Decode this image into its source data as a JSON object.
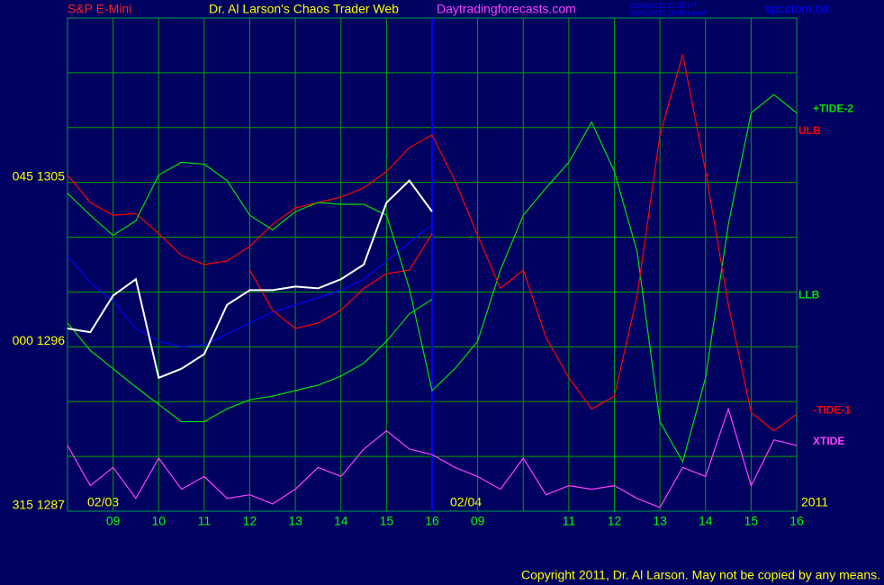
{
  "chart_data": {
    "type": "line",
    "title": "Dr. Al Larson's Chaos Trader Web",
    "symbol": "S&P E-Mini",
    "website": "Daytradingforecasts.com",
    "timestamp_ut": "02/03/2011 21:30 UT",
    "timestamp_local": "02/03/2011 16:30 Local",
    "file": "spcctom.txt",
    "copyright": "Copyright 2011, Dr. Al Larson. May not be copied by any means.",
    "date_labels": [
      "02/03",
      "02/04",
      "2011"
    ],
    "x": [
      0,
      0.5,
      1,
      1.5,
      2,
      2.5,
      3,
      3.5,
      4,
      4.5,
      5,
      5.5,
      6,
      6.5,
      7,
      7.5,
      8,
      8.5,
      9,
      9.5,
      10,
      10.5,
      11,
      11.5,
      12,
      12.5,
      13,
      13.5,
      14,
      14.5,
      15,
      15.5,
      16
    ],
    "xlim": [
      0,
      16
    ],
    "xticks": [
      {
        "value": 1,
        "label": "09"
      },
      {
        "value": 2,
        "label": "10"
      },
      {
        "value": 3,
        "label": "11"
      },
      {
        "value": 4,
        "label": "12"
      },
      {
        "value": 5,
        "label": "13"
      },
      {
        "value": 6,
        "label": "14"
      },
      {
        "value": 7,
        "label": "15"
      },
      {
        "value": 8,
        "label": "16"
      },
      {
        "value": 9,
        "label": "09"
      },
      {
        "value": 11,
        "label": "11"
      },
      {
        "value": 12,
        "label": "12"
      },
      {
        "value": 13,
        "label": "13"
      },
      {
        "value": 14,
        "label": "14"
      },
      {
        "value": 15,
        "label": "15"
      },
      {
        "value": 16,
        "label": "16"
      }
    ],
    "ylim": [
      1287,
      1314
    ],
    "yticks": [
      {
        "value": 1287,
        "label": "315 1287"
      },
      {
        "value": 1296,
        "label": "000 1296"
      },
      {
        "value": 1305,
        "label": "045 1305"
      }
    ],
    "ygrid": [
      1287,
      1290,
      1293,
      1296,
      1299,
      1302,
      1305,
      1308,
      1311,
      1314
    ],
    "xgrid": [
      0,
      1,
      2,
      3,
      4,
      5,
      6,
      7,
      8,
      9,
      10,
      11,
      12,
      13,
      14,
      15,
      16
    ],
    "day_divider": 8,
    "grid": true,
    "series": [
      {
        "color": "#0000ff",
        "values": [
          1301.0,
          1299.5,
          1298.5,
          1297.0,
          1296.3,
          1296.0,
          1296.1,
          1296.7,
          1297.3,
          1297.9,
          1298.3,
          1298.7,
          1299.1,
          1299.7,
          1300.7,
          1301.7,
          1302.7,
          null,
          null,
          null,
          null,
          null,
          null,
          null,
          null,
          null,
          null,
          null,
          null,
          null,
          null,
          null,
          null
        ]
      },
      {
        "name": "LLB",
        "color": "#00e000",
        "values": [
          1297.3,
          1295.8,
          1294.8,
          1293.8,
          1292.85,
          1291.9,
          1291.9,
          1292.6,
          1293.1,
          1293.3,
          1293.6,
          1293.9,
          1294.4,
          1295.1,
          1296.3,
          1297.8,
          1298.6,
          null,
          null,
          null,
          null,
          null,
          null,
          null,
          null,
          null,
          null,
          null,
          null,
          null,
          null,
          null,
          null
        ]
      },
      {
        "name": "ULB",
        "color": "#ff0000",
        "values": [
          1305.4,
          1303.9,
          1303.2,
          1303.3,
          1302.2,
          1301.0,
          1300.5,
          1300.7,
          1301.5,
          1302.7,
          1303.6,
          1303.9,
          1304.2,
          1304.7,
          1305.6,
          1306.9,
          1307.6,
          null,
          null,
          null,
          null,
          null,
          null,
          null,
          null,
          null,
          null,
          null,
          null,
          null,
          null,
          null,
          null
        ]
      },
      {
        "color": "#ff0000",
        "values": [
          null,
          null,
          null,
          null,
          null,
          null,
          null,
          null,
          1300.2,
          1298.0,
          1297.0,
          1297.3,
          1298.0,
          1299.2,
          1300.0,
          1300.2,
          1302.2,
          null,
          null,
          null,
          null,
          null,
          null,
          null,
          null,
          null,
          null,
          null,
          null,
          null,
          null,
          null,
          null
        ]
      },
      {
        "name": "+TIDE-2",
        "color": "#00e000",
        "values": [
          1304.4,
          1303.2,
          1302.1,
          1302.9,
          1305.4,
          1306.1,
          1306.0,
          1305.1,
          1303.2,
          1302.4,
          1303.4,
          1303.9,
          1303.8,
          1303.8,
          1303.2,
          1299.2,
          1293.6,
          1294.8,
          1296.3,
          1300.2,
          1303.2,
          1304.7,
          1306.1,
          1308.3,
          1305.6,
          1301.2,
          1291.9,
          1289.7,
          1294.3,
          1302.7,
          1308.8,
          1309.8,
          1308.8
        ]
      },
      {
        "name": "-TIDE-1",
        "color": "#ff0000",
        "values": [
          null,
          null,
          null,
          null,
          null,
          null,
          null,
          null,
          null,
          null,
          null,
          null,
          null,
          null,
          null,
          null,
          1307.6,
          1305.1,
          1302.1,
          1299.2,
          1300.2,
          1296.5,
          1294.3,
          1292.6,
          1293.3,
          1298.8,
          1307.6,
          1312.0,
          1305.6,
          1298.3,
          1292.4,
          1291.4,
          1292.3
        ]
      },
      {
        "name": "XTIDE",
        "color": "#ff40ff",
        "values": [
          1290.6,
          1288.4,
          1289.4,
          1287.7,
          1289.9,
          1288.2,
          1288.9,
          1287.7,
          1287.9,
          1287.4,
          1288.2,
          1289.4,
          1288.9,
          1290.4,
          1291.4,
          1290.4,
          1290.1,
          1289.4,
          1288.9,
          1288.2,
          1289.9,
          1287.9,
          1288.4,
          1288.2,
          1288.4,
          1287.7,
          1287.2,
          1289.4,
          1288.9,
          1292.6,
          1288.4,
          1290.9,
          1290.6
        ]
      },
      {
        "color": "#ffffff",
        "values": [
          1297.0,
          1296.8,
          1298.8,
          1299.7,
          1294.3,
          1294.8,
          1295.6,
          1298.3,
          1299.1,
          1299.1,
          1299.3,
          1299.2,
          1299.7,
          1300.5,
          1303.9,
          1305.1,
          1303.4,
          null,
          null,
          null,
          null,
          null,
          null,
          null,
          null,
          null,
          null,
          null,
          null,
          null,
          null,
          null,
          null
        ]
      }
    ]
  }
}
